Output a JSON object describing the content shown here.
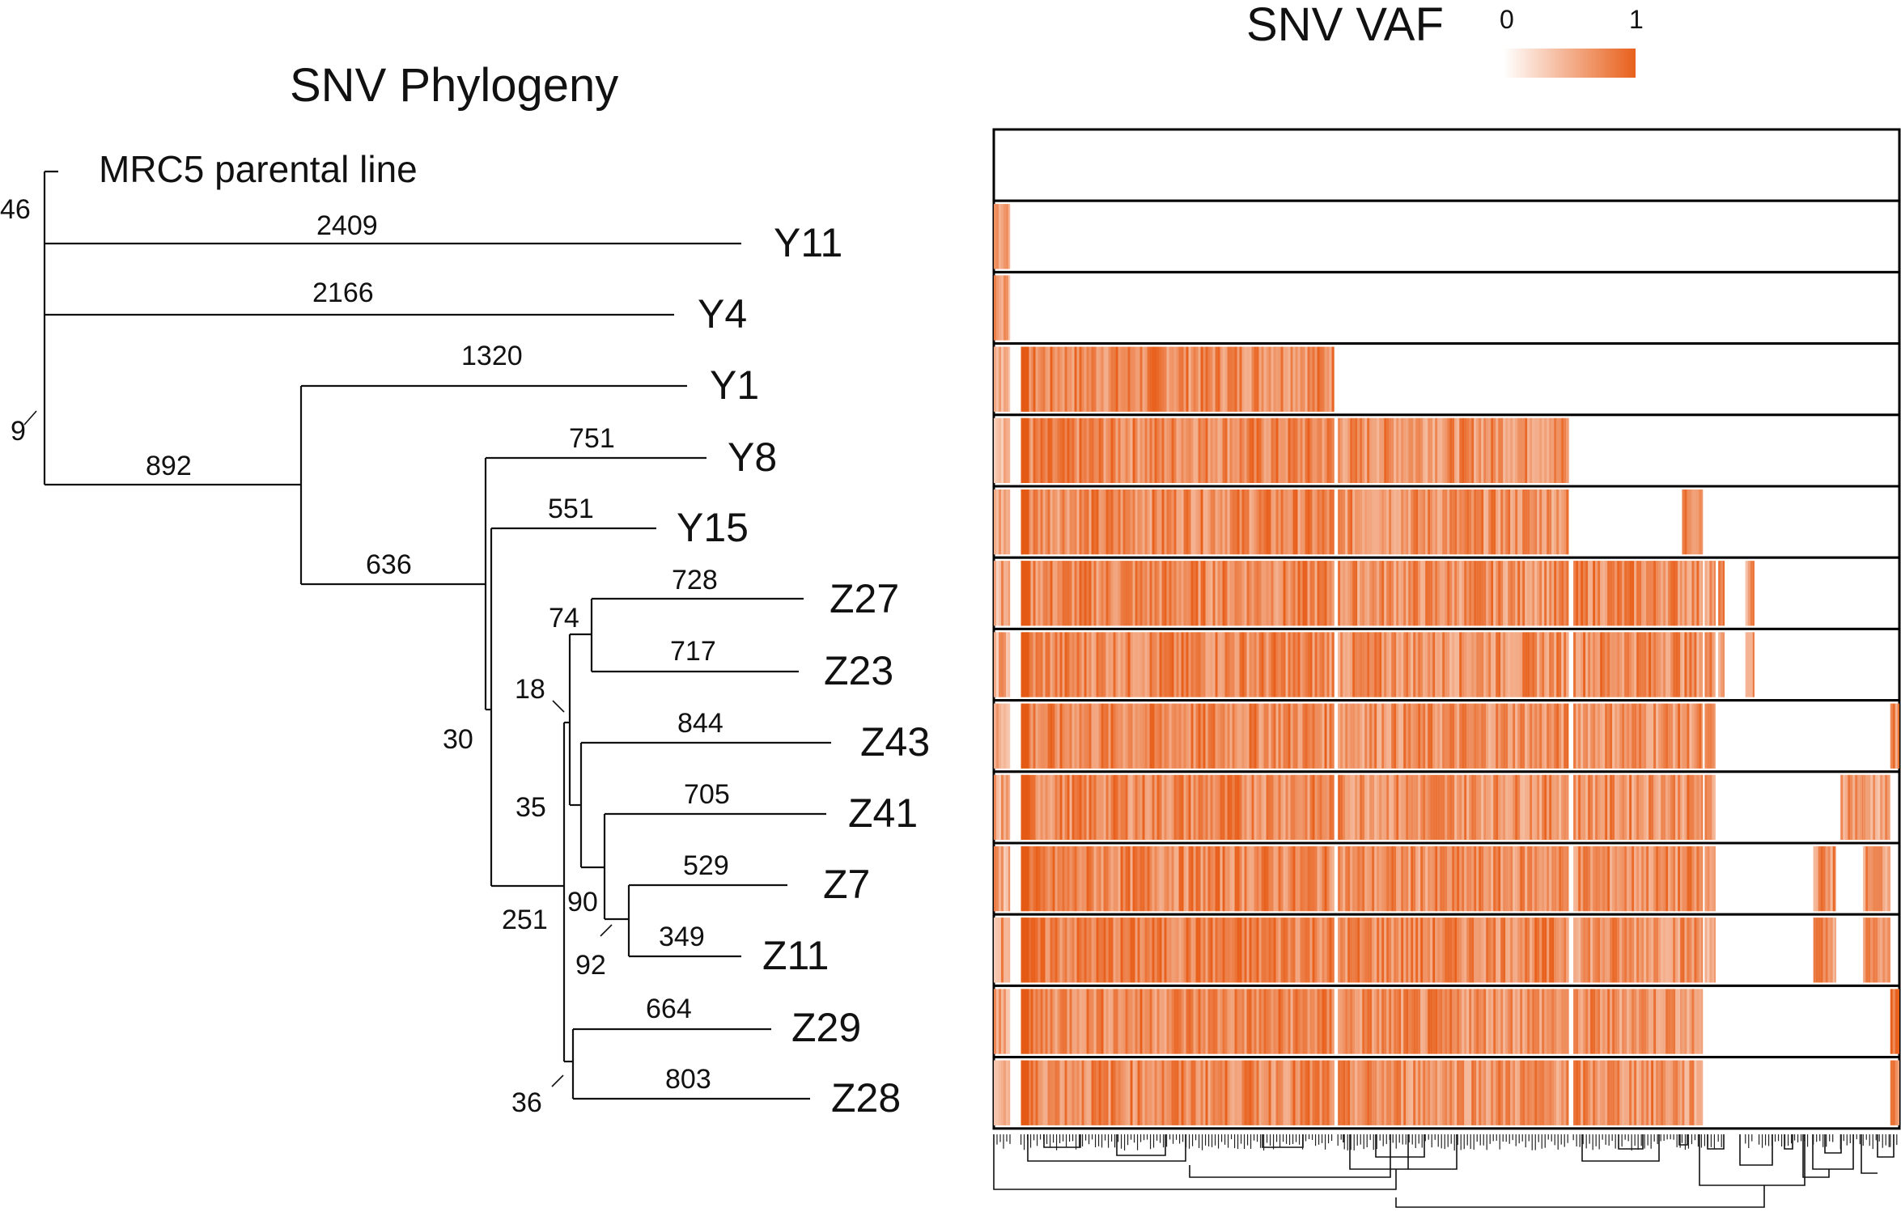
{
  "titles": {
    "phylogeny": "SNV Phylogeny",
    "heatmap": "SNV VAF"
  },
  "colorbar": {
    "min_label": "0",
    "max_label": "1",
    "color_min": "#ffffff",
    "color_max": "#e8601c"
  },
  "tree": {
    "root_label": "MRC5 parental line",
    "tips": [
      "Y11",
      "Y4",
      "Y1",
      "Y8",
      "Y15",
      "Z27",
      "Z23",
      "Z43",
      "Z41",
      "Z7",
      "Z11",
      "Z29",
      "Z28"
    ],
    "branch_lengths": {
      "Y11": "2409",
      "Y4": "2166",
      "Y1": "1320",
      "Y8": "751",
      "Y15": "551",
      "Z27": "728",
      "Z23": "717",
      "Z43": "844",
      "Z41": "705",
      "Z7": "529",
      "Z11": "349",
      "Z29": "664",
      "Z28": "803",
      "n892": "892",
      "n636": "636"
    },
    "internal_labels": {
      "n46": "46",
      "n9": "9",
      "n30": "30",
      "n251": "251",
      "n74": "74",
      "n18": "18",
      "n35": "35",
      "n90": "90",
      "n92": "92",
      "n36": "36"
    }
  },
  "heatmap": {
    "accent": "#e8601c",
    "rows": [
      "MRC5 parental line",
      "Y11",
      "Y4",
      "Y1",
      "Y8",
      "Y15",
      "Z27",
      "Z23",
      "Z43",
      "Z41",
      "Z7",
      "Z11",
      "Z29",
      "Z28"
    ],
    "columns_fraction_start": [
      0.0,
      0.03,
      0.38,
      0.64,
      0.76,
      0.785,
      0.8,
      0.83,
      0.845,
      0.905,
      0.935,
      0.96,
      0.99
    ],
    "columns_fraction_end": [
      0.018,
      0.376,
      0.635,
      0.76,
      0.783,
      0.797,
      0.807,
      0.84,
      0.9,
      0.93,
      0.96,
      0.99,
      1.0
    ],
    "presence": [
      [
        0,
        0,
        0,
        0,
        0,
        0,
        0,
        0,
        0,
        0,
        0,
        0,
        0
      ],
      [
        0.7,
        0,
        0,
        0,
        0,
        0,
        0,
        0,
        0,
        0,
        0,
        0,
        0
      ],
      [
        0.6,
        0,
        0,
        0,
        0,
        0,
        0,
        0,
        0,
        0,
        0,
        0,
        0
      ],
      [
        0.55,
        0.75,
        0,
        0,
        0,
        0,
        0,
        0,
        0,
        0,
        0,
        0,
        0
      ],
      [
        0.55,
        0.75,
        0.7,
        0,
        0,
        0,
        0,
        0,
        0,
        0,
        0,
        0,
        0
      ],
      [
        0.55,
        0.75,
        0.7,
        0,
        0.8,
        0,
        0,
        0,
        0,
        0,
        0,
        0,
        0
      ],
      [
        0.55,
        0.75,
        0.7,
        0.75,
        0.7,
        0.7,
        0.7,
        0.6,
        0,
        0,
        0,
        0,
        0
      ],
      [
        0.55,
        0.75,
        0.7,
        0.75,
        0.7,
        0.7,
        0.7,
        0.6,
        0,
        0,
        0,
        0,
        0
      ],
      [
        0.55,
        0.75,
        0.7,
        0.7,
        0.7,
        0.6,
        0,
        0,
        0,
        0,
        0,
        0,
        0.7
      ],
      [
        0.55,
        0.75,
        0.7,
        0.7,
        0.7,
        0.6,
        0,
        0,
        0,
        0,
        0.7,
        0.6,
        0
      ],
      [
        0.55,
        0.75,
        0.7,
        0.7,
        0.7,
        0.6,
        0,
        0,
        0,
        0.7,
        0,
        0.65,
        0
      ],
      [
        0.6,
        0.8,
        0.75,
        0.7,
        0.7,
        0.6,
        0,
        0,
        0,
        0.7,
        0,
        0.65,
        0
      ],
      [
        0.55,
        0.75,
        0.7,
        0.7,
        0.6,
        0,
        0,
        0,
        0,
        0,
        0,
        0,
        0.85
      ],
      [
        0.55,
        0.75,
        0.7,
        0.7,
        0.6,
        0,
        0,
        0,
        0,
        0,
        0,
        0,
        0.8
      ]
    ]
  }
}
